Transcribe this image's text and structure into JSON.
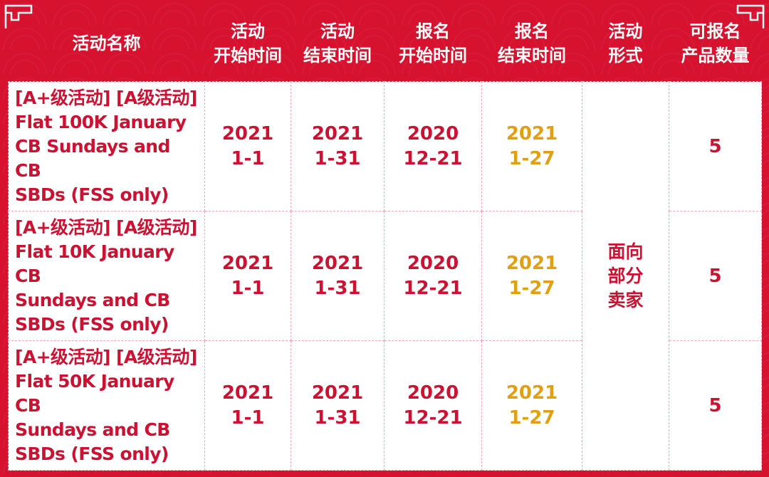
{
  "colors": {
    "frame_red": "#d6122f",
    "cell_text_red": "#cc1233",
    "highlight_gold": "#e0a012",
    "cell_bg": "#ffffff"
  },
  "icons": {
    "left_corner": "cloud-scroll-ornament-icon",
    "right_corner": "cloud-scroll-ornament-icon"
  },
  "headers": [
    {
      "line1": "活动名称",
      "line2": ""
    },
    {
      "line1": "活动",
      "line2": "开始时间"
    },
    {
      "line1": "活动",
      "line2": "结束时间"
    },
    {
      "line1": "报名",
      "line2": "开始时间"
    },
    {
      "line1": "报名",
      "line2": "结束时间"
    },
    {
      "line1": "活动",
      "line2": "形式"
    },
    {
      "line1": "可报名",
      "line2": "产品数量"
    }
  ],
  "rows": [
    {
      "name_lines": [
        "[A+级活动] [A级活动]",
        "Flat 100K January",
        "CB Sundays and CB",
        "SBDs (FSS only)"
      ],
      "activity_start": {
        "year": "2021",
        "date": "1-1"
      },
      "activity_end": {
        "year": "2021",
        "date": "1-31"
      },
      "signup_start": {
        "year": "2020",
        "date": "12-21"
      },
      "signup_end": {
        "year": "2021",
        "date": "1-27"
      },
      "product_count": "5"
    },
    {
      "name_lines": [
        "[A+级活动] [A级活动]",
        "Flat 10K January CB",
        "Sundays and CB",
        "SBDs (FSS only)"
      ],
      "activity_start": {
        "year": "2021",
        "date": "1-1"
      },
      "activity_end": {
        "year": "2021",
        "date": "1-31"
      },
      "signup_start": {
        "year": "2020",
        "date": "12-21"
      },
      "signup_end": {
        "year": "2021",
        "date": "1-27"
      },
      "product_count": "5"
    },
    {
      "name_lines": [
        "[A+级活动] [A级活动]",
        "Flat 50K January CB",
        "Sundays and CB",
        "SBDs (FSS only)"
      ],
      "activity_start": {
        "year": "2021",
        "date": "1-1"
      },
      "activity_end": {
        "year": "2021",
        "date": "1-31"
      },
      "signup_start": {
        "year": "2020",
        "date": "12-21"
      },
      "signup_end": {
        "year": "2021",
        "date": "1-27"
      },
      "product_count": "5"
    }
  ],
  "activity_format_lines": [
    "面向",
    "部分",
    "卖家"
  ]
}
